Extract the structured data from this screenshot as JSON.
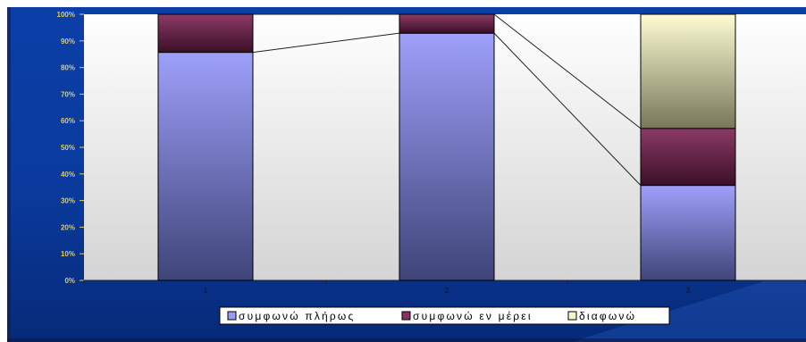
{
  "chart_data": {
    "type": "bar",
    "stacked": true,
    "normalized": true,
    "categories": [
      "1",
      "2",
      "3"
    ],
    "series": [
      {
        "name": "συμφωνώ πλήρως",
        "values": [
          85.7,
          92.9,
          35.7
        ]
      },
      {
        "name": "συμφωνώ εν μέρει",
        "values": [
          14.3,
          7.1,
          21.4
        ]
      },
      {
        "name": "διαφωνώ",
        "values": [
          0,
          0,
          42.9
        ]
      }
    ],
    "y_ticks": [
      "0%",
      "10%",
      "20%",
      "30%",
      "40%",
      "50%",
      "60%",
      "70%",
      "80%",
      "90%",
      "100%"
    ],
    "ylim": [
      0,
      100
    ],
    "series_lines": true,
    "legend_position": "bottom",
    "grid": false,
    "colors": {
      "frame": "#0a3aa0",
      "plot_area_top": "#ffffff",
      "plot_area_bottom": "#d8d8d8",
      "tick_labels": "#e8cc3c",
      "series": [
        "#9a9cf4",
        "#86345f",
        "#f8f6c6"
      ]
    }
  }
}
